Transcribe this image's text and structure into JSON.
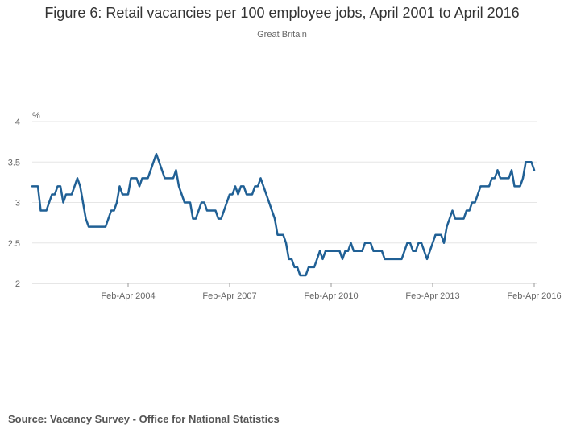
{
  "chart_data": {
    "type": "line",
    "title": "Figure 6: Retail vacancies per 100 employee jobs, April 2001 to April 2016",
    "subtitle": "Great Britain",
    "ylabel": "%",
    "xlabel": "",
    "ylim": [
      2,
      4
    ],
    "yticks": [
      "2",
      "2.5",
      "3",
      "3.5",
      "4"
    ],
    "xticks": [
      "Feb-Apr 2004",
      "Feb-Apr 2007",
      "Feb-Apr 2010",
      "Feb-Apr 2013",
      "Feb-Apr 2016"
    ],
    "grid": true,
    "legend": "none",
    "series": [
      {
        "color": "#206095",
        "values": [
          3.2,
          3.2,
          3.2,
          2.9,
          2.9,
          2.9,
          3.0,
          3.1,
          3.1,
          3.2,
          3.2,
          3.0,
          3.1,
          3.1,
          3.1,
          3.2,
          3.3,
          3.2,
          3.0,
          2.8,
          2.7,
          2.7,
          2.7,
          2.7,
          2.7,
          2.7,
          2.7,
          2.8,
          2.9,
          2.9,
          3.0,
          3.2,
          3.1,
          3.1,
          3.1,
          3.3,
          3.3,
          3.3,
          3.2,
          3.3,
          3.3,
          3.3,
          3.4,
          3.5,
          3.6,
          3.5,
          3.4,
          3.3,
          3.3,
          3.3,
          3.3,
          3.4,
          3.2,
          3.1,
          3.0,
          3.0,
          3.0,
          2.8,
          2.8,
          2.9,
          3.0,
          3.0,
          2.9,
          2.9,
          2.9,
          2.9,
          2.8,
          2.8,
          2.9,
          3.0,
          3.1,
          3.1,
          3.2,
          3.1,
          3.2,
          3.2,
          3.1,
          3.1,
          3.1,
          3.2,
          3.2,
          3.3,
          3.2,
          3.1,
          3.0,
          2.9,
          2.8,
          2.6,
          2.6,
          2.6,
          2.5,
          2.3,
          2.3,
          2.2,
          2.2,
          2.1,
          2.1,
          2.1,
          2.2,
          2.2,
          2.2,
          2.3,
          2.4,
          2.3,
          2.4,
          2.4,
          2.4,
          2.4,
          2.4,
          2.4,
          2.3,
          2.4,
          2.4,
          2.5,
          2.4,
          2.4,
          2.4,
          2.4,
          2.5,
          2.5,
          2.5,
          2.4,
          2.4,
          2.4,
          2.4,
          2.3,
          2.3,
          2.3,
          2.3,
          2.3,
          2.3,
          2.3,
          2.4,
          2.5,
          2.5,
          2.4,
          2.4,
          2.5,
          2.5,
          2.4,
          2.3,
          2.4,
          2.5,
          2.6,
          2.6,
          2.6,
          2.5,
          2.7,
          2.8,
          2.9,
          2.8,
          2.8,
          2.8,
          2.8,
          2.9,
          2.9,
          3.0,
          3.0,
          3.1,
          3.2,
          3.2,
          3.2,
          3.2,
          3.3,
          3.3,
          3.4,
          3.3,
          3.3,
          3.3,
          3.3,
          3.4,
          3.2,
          3.2,
          3.2,
          3.3,
          3.5,
          3.5,
          3.5,
          3.4
        ]
      }
    ]
  },
  "footer": {
    "source": "Source: Vacancy Survey - Office for National Statistics"
  }
}
